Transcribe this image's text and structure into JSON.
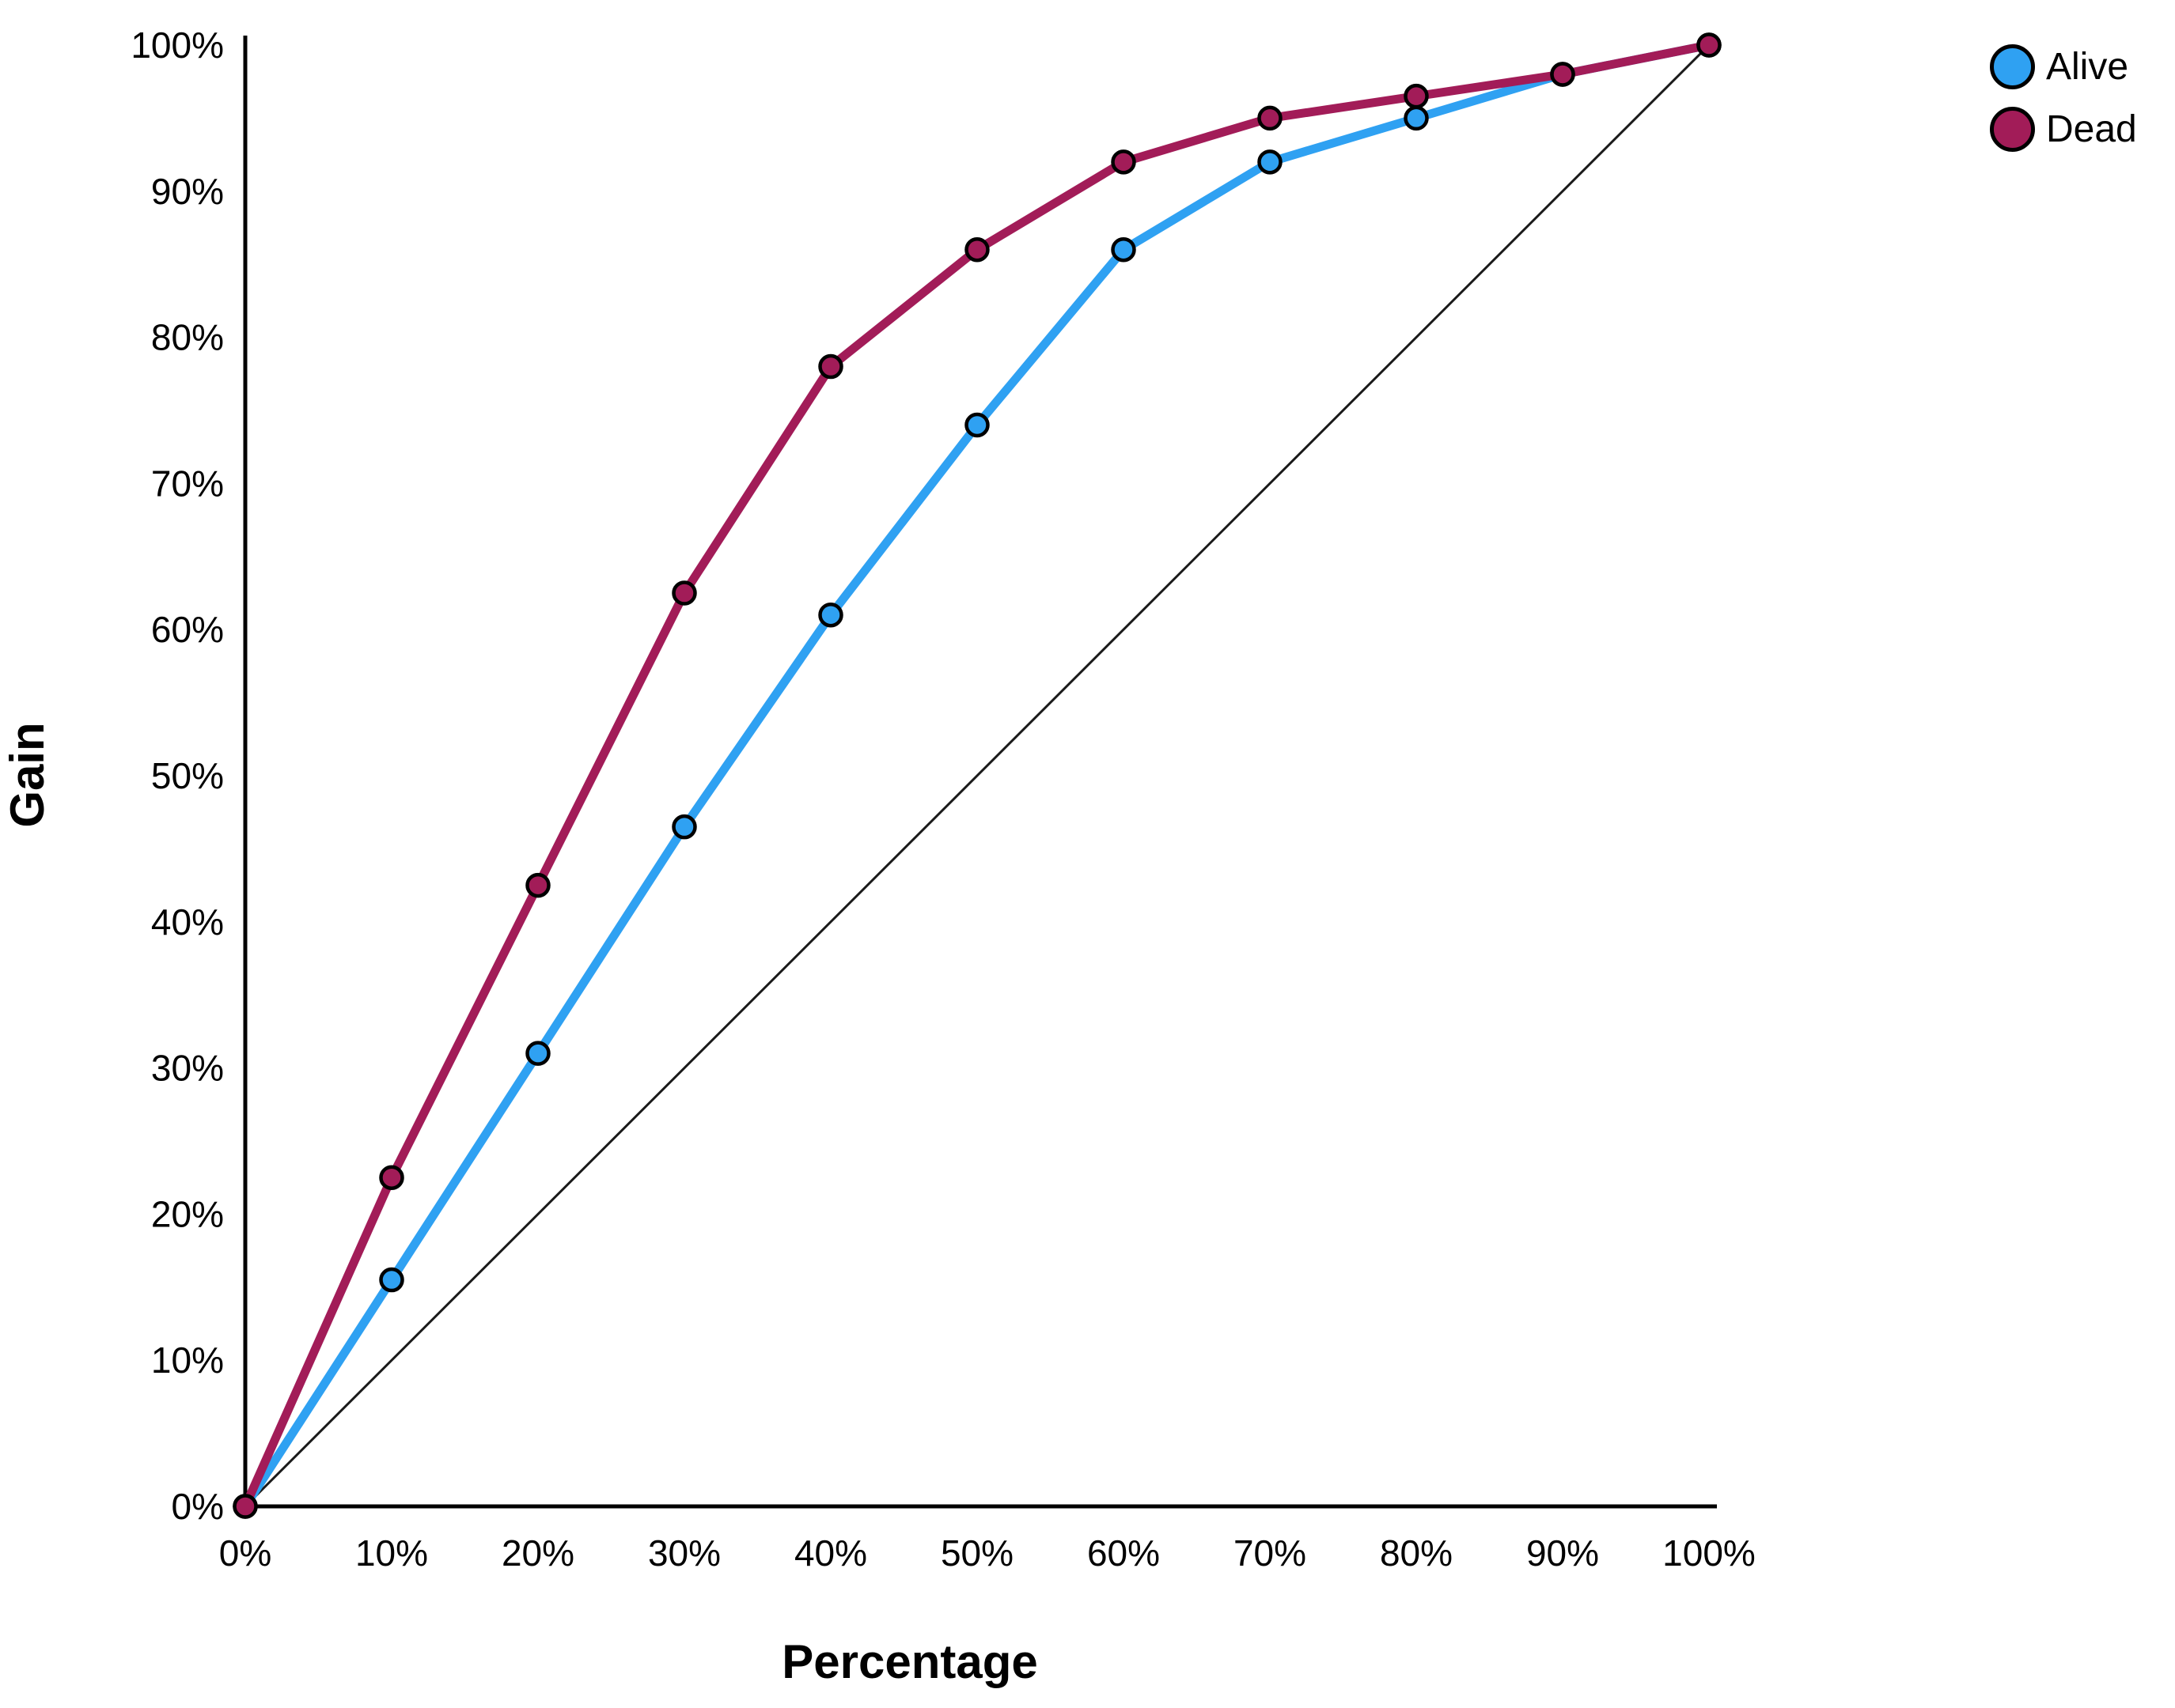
{
  "chart_data": {
    "type": "line",
    "title": "",
    "xlabel": "Percentage",
    "ylabel": "Gain",
    "xlim": [
      0,
      100
    ],
    "ylim": [
      0,
      100
    ],
    "grid": false,
    "legend_position": "top-right",
    "x": [
      0,
      10,
      20,
      30,
      40,
      50,
      60,
      70,
      80,
      90,
      100
    ],
    "x_tick_labels": [
      "0%",
      "10%",
      "20%",
      "30%",
      "40%",
      "50%",
      "60%",
      "70%",
      "80%",
      "90%",
      "100%"
    ],
    "y_ticks": [
      0,
      10,
      20,
      30,
      40,
      50,
      60,
      70,
      80,
      90,
      100
    ],
    "y_tick_labels": [
      "0%",
      "10%",
      "20%",
      "30%",
      "40%",
      "50%",
      "60%",
      "70%",
      "80%",
      "90%",
      "100%"
    ],
    "series": [
      {
        "name": "Alive",
        "color": "#2FA1F2",
        "values": [
          0,
          15.5,
          31,
          46.5,
          61,
          74,
          86,
          92,
          95,
          98,
          100
        ]
      },
      {
        "name": "Dead",
        "color": "#A21C58",
        "values": [
          0,
          22.5,
          42.5,
          62.5,
          78,
          86,
          92,
          95,
          96.5,
          98,
          100
        ]
      }
    ],
    "reference_line": {
      "label": "diagonal-baseline",
      "from": [
        0,
        0
      ],
      "to": [
        100,
        100
      ],
      "color": "#1a1a1a"
    },
    "colors": {
      "axis": "#000000",
      "marker_outline": "#000000",
      "background": "#ffffff"
    }
  }
}
